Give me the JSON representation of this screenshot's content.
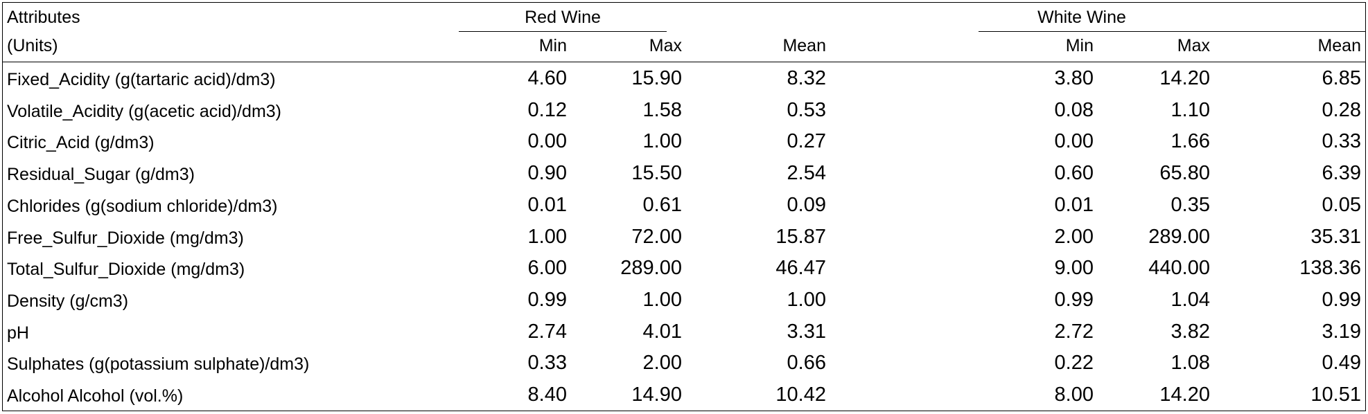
{
  "table": {
    "header": {
      "attributes_label": "Attributes",
      "units_label": "(Units)",
      "groups": [
        {
          "title": "Red Wine",
          "columns": [
            "Min",
            "Max",
            "Mean"
          ]
        },
        {
          "title": "White Wine",
          "columns": [
            "Min",
            "Max",
            "Mean"
          ]
        }
      ]
    },
    "rows": [
      {
        "attribute": "Fixed_Acidity (g(tartaric acid)/dm3)",
        "red": [
          "4.60",
          "15.90",
          "8.32"
        ],
        "white": [
          "3.80",
          "14.20",
          "6.85"
        ]
      },
      {
        "attribute": "Volatile_Acidity (g(acetic acid)/dm3)",
        "red": [
          "0.12",
          "1.58",
          "0.53"
        ],
        "white": [
          "0.08",
          "1.10",
          "0.28"
        ]
      },
      {
        "attribute": "Citric_Acid (g/dm3)",
        "red": [
          "0.00",
          "1.00",
          "0.27"
        ],
        "white": [
          "0.00",
          "1.66",
          "0.33"
        ]
      },
      {
        "attribute": "Residual_Sugar (g/dm3)",
        "red": [
          "0.90",
          "15.50",
          "2.54"
        ],
        "white": [
          "0.60",
          "65.80",
          "6.39"
        ]
      },
      {
        "attribute": "Chlorides (g(sodium chloride)/dm3)",
        "red": [
          "0.01",
          "0.61",
          "0.09"
        ],
        "white": [
          "0.01",
          "0.35",
          "0.05"
        ]
      },
      {
        "attribute": "Free_Sulfur_Dioxide (mg/dm3)",
        "red": [
          "1.00",
          "72.00",
          "15.87"
        ],
        "white": [
          "2.00",
          "289.00",
          "35.31"
        ]
      },
      {
        "attribute": "Total_Sulfur_Dioxide (mg/dm3)",
        "red": [
          "6.00",
          "289.00",
          "46.47"
        ],
        "white": [
          "9.00",
          "440.00",
          "138.36"
        ]
      },
      {
        "attribute": "Density (g/cm3)",
        "red": [
          "0.99",
          "1.00",
          "1.00"
        ],
        "white": [
          "0.99",
          "1.04",
          "0.99"
        ]
      },
      {
        "attribute": "pH",
        "red": [
          "2.74",
          "4.01",
          "3.31"
        ],
        "white": [
          "2.72",
          "3.82",
          "3.19"
        ]
      },
      {
        "attribute": "Sulphates (g(potassium sulphate)/dm3)",
        "red": [
          "0.33",
          "2.00",
          "0.66"
        ],
        "white": [
          "0.22",
          "1.08",
          "0.49"
        ]
      },
      {
        "attribute": "Alcohol Alcohol (vol.%)",
        "red": [
          "8.40",
          "14.90",
          "10.42"
        ],
        "white": [
          "8.00",
          "14.20",
          "10.51"
        ]
      }
    ]
  }
}
